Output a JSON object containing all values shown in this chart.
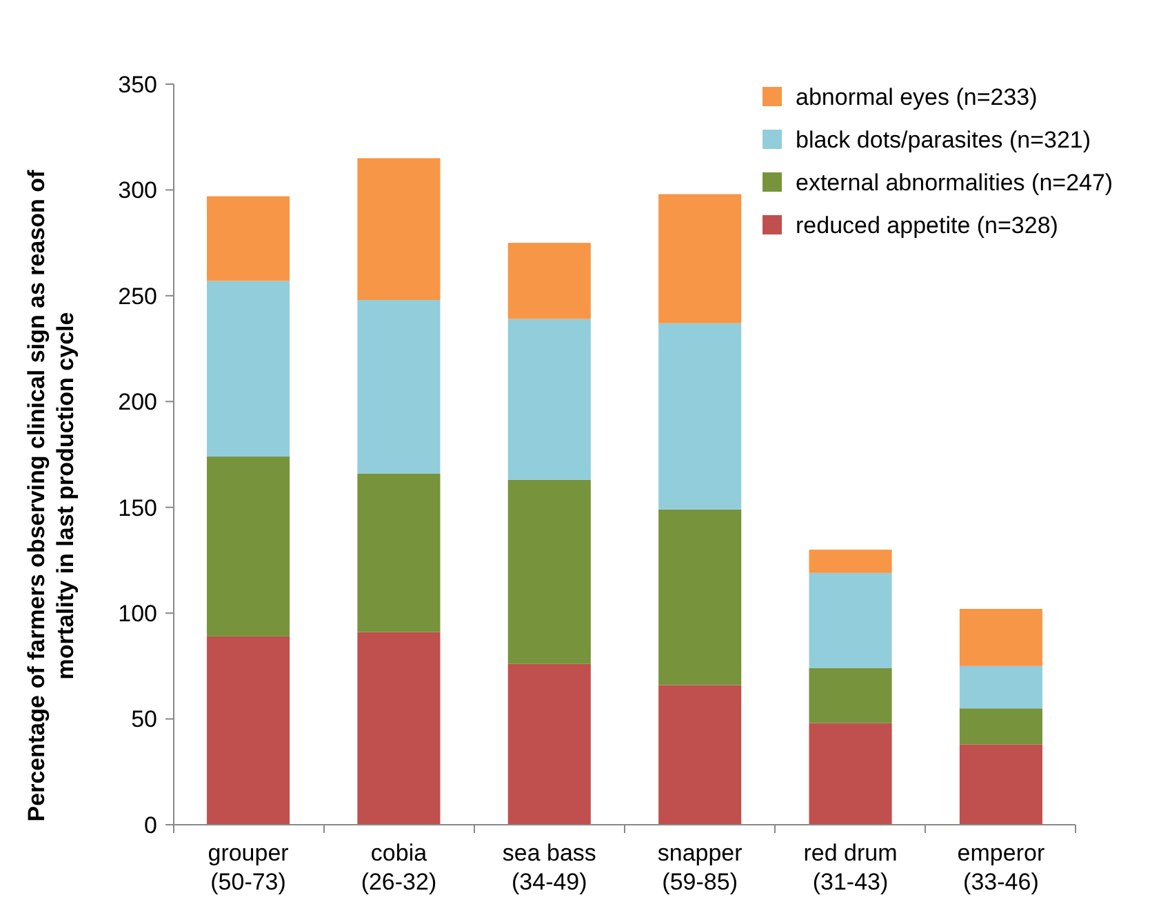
{
  "chart_data": {
    "type": "bar",
    "stacked": true,
    "ylabel": "Percentage of farmers observing clinical sign as reason of\nmortality in last production cycle",
    "categories": [
      "grouper\n(50-73)",
      "cobia\n(26-32)",
      "sea bass\n(34-49)",
      "snapper\n(59-85)",
      "red drum\n(31-43)",
      "emperor\n(33-46)"
    ],
    "series": [
      {
        "name": "reduced appetite (n=328)",
        "color": "#c0504d",
        "values": [
          89,
          91,
          76,
          66,
          48,
          38
        ]
      },
      {
        "name": "external abnormalities (n=247)",
        "color": "#77933c",
        "values": [
          85,
          75,
          87,
          83,
          26,
          17
        ]
      },
      {
        "name": "black dots/parasites (n=321)",
        "color": "#92cddc",
        "values": [
          83,
          82,
          76,
          88,
          45,
          20
        ]
      },
      {
        "name": "abnormal eyes (n=233)",
        "color": "#f79646",
        "values": [
          40,
          67,
          36,
          61,
          11,
          27
        ]
      }
    ],
    "ylim": [
      0,
      350
    ],
    "yticks": [
      0,
      50,
      100,
      150,
      200,
      250,
      300,
      350
    ],
    "grid": false,
    "legend": "top right"
  }
}
